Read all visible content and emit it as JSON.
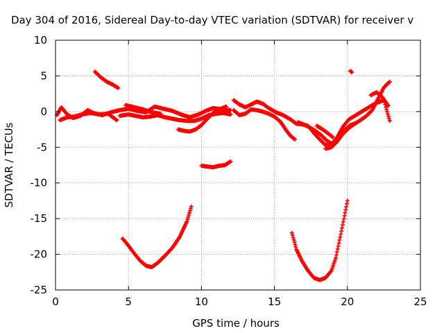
{
  "chart_data": {
    "type": "scatter",
    "title": "Day 304 of 2016, Sidereal Day-to-day VTEC variation (SDTVAR) for receiver v",
    "xlabel": "GPS time / hours",
    "ylabel": "SDTVAR / TECUs",
    "xlim": [
      0,
      25
    ],
    "ylim": [
      -25,
      10
    ],
    "x_ticks": [
      0,
      5,
      10,
      15,
      20,
      25
    ],
    "y_ticks": [
      -25,
      -20,
      -15,
      -10,
      -5,
      0,
      5,
      10
    ],
    "grid": true,
    "marker": "+",
    "series_color": "#ff0000",
    "series": [
      {
        "segments": [
          [
            [
              2.7,
              5.6
            ],
            [
              3.1,
              4.8
            ],
            [
              3.5,
              4.2
            ],
            [
              3.9,
              3.8
            ],
            [
              4.3,
              3.3
            ]
          ],
          [
            [
              0.1,
              -0.5
            ],
            [
              0.4,
              0.6
            ],
            [
              0.8,
              -0.4
            ],
            [
              1.2,
              -0.9
            ],
            [
              1.7,
              -0.6
            ],
            [
              2.2,
              0.2
            ],
            [
              2.6,
              -0.2
            ],
            [
              3.2,
              -0.5
            ],
            [
              3.8,
              -0.1
            ],
            [
              4.4,
              0.2
            ],
            [
              5.0,
              0.4
            ],
            [
              5.6,
              0.1
            ],
            [
              6.2,
              -0.1
            ],
            [
              6.8,
              0.7
            ],
            [
              7.4,
              0.4
            ],
            [
              8.0,
              0.1
            ],
            [
              8.6,
              -0.4
            ],
            [
              9.2,
              -0.8
            ],
            [
              9.8,
              -0.4
            ],
            [
              10.3,
              0.1
            ],
            [
              10.8,
              0.5
            ],
            [
              11.4,
              0.3
            ],
            [
              12.0,
              0.2
            ]
          ],
          [
            [
              0.3,
              -1.2
            ],
            [
              0.8,
              -0.8
            ],
            [
              1.3,
              -0.7
            ],
            [
              1.8,
              -0.4
            ],
            [
              2.4,
              -0.2
            ],
            [
              3.0,
              -0.4
            ],
            [
              3.6,
              -0.3
            ],
            [
              4.0,
              -0.9
            ],
            [
              4.2,
              -1.2
            ]
          ],
          [
            [
              4.4,
              -0.6
            ],
            [
              5.0,
              -0.4
            ],
            [
              5.5,
              -0.6
            ],
            [
              6.0,
              -0.8
            ],
            [
              6.5,
              -0.7
            ],
            [
              7.0,
              -0.5
            ],
            [
              7.5,
              -0.8
            ],
            [
              8.0,
              -1.0
            ],
            [
              8.5,
              -1.2
            ],
            [
              9.0,
              -1.3
            ],
            [
              9.5,
              -1.3
            ],
            [
              10.0,
              -1.0
            ],
            [
              10.5,
              -0.5
            ],
            [
              11.0,
              -0.3
            ],
            [
              11.5,
              -0.2
            ],
            [
              12.0,
              -0.4
            ]
          ],
          [
            [
              4.8,
              0.9
            ],
            [
              5.4,
              0.6
            ],
            [
              6.0,
              0.3
            ],
            [
              6.6,
              -0.1
            ],
            [
              7.2,
              -0.3
            ]
          ],
          [
            [
              8.4,
              -2.5
            ],
            [
              8.8,
              -2.7
            ],
            [
              9.2,
              -2.8
            ],
            [
              9.6,
              -2.5
            ],
            [
              10.0,
              -1.9
            ],
            [
              10.4,
              -1.0
            ],
            [
              10.8,
              -0.2
            ],
            [
              11.2,
              0.3
            ],
            [
              11.7,
              0.7
            ]
          ],
          [
            [
              10.0,
              -7.6
            ],
            [
              10.4,
              -7.7
            ],
            [
              10.8,
              -7.8
            ],
            [
              11.2,
              -7.6
            ],
            [
              11.6,
              -7.5
            ],
            [
              12.0,
              -7.0
            ]
          ],
          [
            [
              4.6,
              -17.8
            ],
            [
              5.0,
              -18.8
            ],
            [
              5.4,
              -19.9
            ],
            [
              5.8,
              -20.9
            ],
            [
              6.2,
              -21.6
            ],
            [
              6.6,
              -21.8
            ],
            [
              7.0,
              -21.2
            ],
            [
              7.5,
              -20.2
            ],
            [
              8.0,
              -19.1
            ],
            [
              8.5,
              -17.6
            ],
            [
              9.0,
              -15.4
            ],
            [
              9.3,
              -13.3
            ]
          ],
          [
            [
              12.2,
              1.6
            ],
            [
              12.6,
              1.0
            ],
            [
              13.0,
              0.6
            ],
            [
              13.4,
              1.0
            ],
            [
              13.8,
              1.4
            ],
            [
              14.2,
              1.1
            ],
            [
              14.6,
              0.5
            ],
            [
              15.1,
              -0.1
            ],
            [
              15.6,
              -0.5
            ],
            [
              16.1,
              -1.1
            ],
            [
              16.5,
              -1.7
            ],
            [
              16.9,
              -1.8
            ],
            [
              17.3,
              -2.0
            ],
            [
              17.7,
              -3.0
            ],
            [
              18.1,
              -3.9
            ],
            [
              18.5,
              -4.7
            ],
            [
              18.9,
              -4.6
            ],
            [
              19.3,
              -3.6
            ],
            [
              19.7,
              -2.1
            ],
            [
              20.1,
              -1.1
            ],
            [
              20.5,
              -0.6
            ],
            [
              20.9,
              -0.1
            ],
            [
              21.3,
              0.4
            ],
            [
              21.7,
              0.9
            ],
            [
              22.1,
              1.3
            ],
            [
              22.5,
              1.6
            ],
            [
              22.9,
              -1.3
            ]
          ],
          [
            [
              12.2,
              0.2
            ],
            [
              12.6,
              -0.5
            ],
            [
              13.0,
              -0.3
            ],
            [
              13.4,
              0.3
            ],
            [
              13.8,
              0.2
            ],
            [
              14.2,
              0.0
            ],
            [
              14.6,
              -0.3
            ],
            [
              15.0,
              -0.7
            ],
            [
              15.4,
              -1.4
            ],
            [
              15.8,
              -2.6
            ],
            [
              16.1,
              -3.4
            ],
            [
              16.4,
              -3.9
            ]
          ],
          [
            [
              16.6,
              -1.5
            ],
            [
              17.0,
              -1.8
            ],
            [
              17.4,
              -2.2
            ],
            [
              17.8,
              -2.7
            ],
            [
              18.2,
              -3.3
            ],
            [
              18.6,
              -4.1
            ],
            [
              19.0,
              -4.6
            ],
            [
              19.4,
              -3.8
            ],
            [
              19.8,
              -2.6
            ],
            [
              20.2,
              -1.9
            ],
            [
              20.6,
              -1.6
            ]
          ],
          [
            [
              17.9,
              -2.0
            ],
            [
              18.3,
              -2.5
            ],
            [
              18.7,
              -3.1
            ],
            [
              19.0,
              -3.6
            ]
          ],
          [
            [
              18.5,
              -5.2
            ],
            [
              18.9,
              -5.0
            ],
            [
              19.3,
              -4.2
            ],
            [
              19.7,
              -3.1
            ],
            [
              20.1,
              -2.3
            ],
            [
              20.5,
              -1.7
            ],
            [
              20.9,
              -1.2
            ],
            [
              21.3,
              -0.6
            ],
            [
              21.7,
              0.2
            ],
            [
              22.1,
              1.8
            ],
            [
              22.5,
              3.4
            ],
            [
              22.9,
              4.2
            ]
          ],
          [
            [
              20.2,
              5.7
            ],
            [
              20.3,
              5.5
            ]
          ],
          [
            [
              21.6,
              2.3
            ],
            [
              22.0,
              2.7
            ],
            [
              22.4,
              2.0
            ],
            [
              22.8,
              0.8
            ]
          ],
          [
            [
              16.2,
              -17.0
            ],
            [
              16.5,
              -19.3
            ],
            [
              16.9,
              -21.0
            ],
            [
              17.3,
              -22.3
            ],
            [
              17.7,
              -23.3
            ],
            [
              18.1,
              -23.6
            ],
            [
              18.5,
              -23.3
            ],
            [
              18.9,
              -22.3
            ],
            [
              19.2,
              -20.5
            ],
            [
              19.5,
              -17.6
            ],
            [
              19.8,
              -14.6
            ],
            [
              20.0,
              -12.5
            ]
          ]
        ]
      }
    ]
  }
}
